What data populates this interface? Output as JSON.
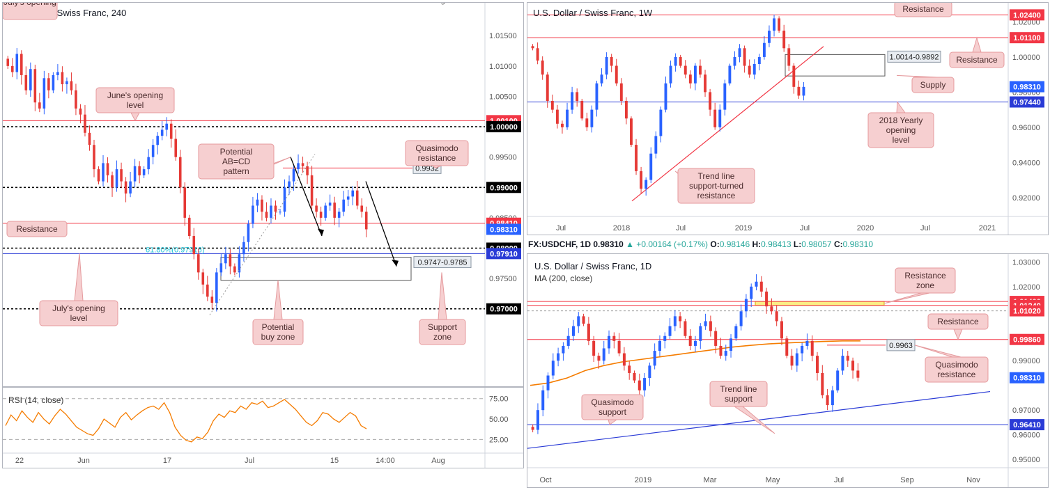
{
  "colors": {
    "bull": "#2962ff",
    "bear": "#e53935",
    "red_line": "#f23645",
    "blue_line": "#2a3bd6",
    "note_bg": "#f6cfd0",
    "note_border": "#e59a9d",
    "rsi": "#f57c00",
    "ma": "#f57c00",
    "zone_fill": "#fbee86",
    "zone_border": "#d4a900",
    "fib": "#26c6da"
  },
  "chart_data": [
    {
      "id": "h4",
      "type": "candlestick",
      "title": "U.S. Dollar / Swiss Franc, 240",
      "ylim": [
        0.9585,
        1.0195
      ],
      "y_ticks": [
        "1.01500",
        "1.01000",
        "1.00500",
        "0.99500",
        "0.98500",
        "0.97500"
      ],
      "x_ticks": [
        "22",
        "Jun",
        "17",
        "Jul",
        "15",
        "14:00",
        "Aug"
      ],
      "levels": [
        {
          "value": 1.001,
          "label": "1.00100",
          "style": "red"
        },
        {
          "value": 1.0,
          "label": "1.00000",
          "style": "black-dotted"
        },
        {
          "value": 0.99,
          "label": "0.99000",
          "style": "black-dotted"
        },
        {
          "value": 0.9841,
          "label": "0.98410",
          "style": "red"
        },
        {
          "value": 0.9831,
          "label": "0.98310",
          "style": "price"
        },
        {
          "value": 0.98,
          "label": "0.98000",
          "style": "black-dotted"
        },
        {
          "value": 0.9791,
          "label": "0.97910",
          "style": "blue"
        },
        {
          "value": 0.97,
          "label": "0.97000",
          "style": "black-dotted"
        }
      ],
      "quasimodo_level": {
        "value": 0.9932,
        "label": "0.9932"
      },
      "fib_label": "61.80%(0.97916)",
      "buy_zone": {
        "top": 0.9785,
        "bottom": 0.9747,
        "label": "0.9747-0.9785"
      },
      "annotations": {
        "julys_opening_top": "July's opening",
        "junes_opening": "June's opening level",
        "quasimodo": "Quasimodo resistance",
        "abcd": "Potential AB=CD pattern",
        "resistance": "Resistance",
        "julys_opening": "July's opening level",
        "buy_zone": "Potential buy zone",
        "support_zone": "Support zone"
      },
      "close_path": [
        1.01,
        1.009,
        1.012,
        1.0085,
        1.006,
        1.0095,
        1.004,
        1.003,
        1.008,
        1.006,
        1.0085,
        1.009,
        1.007,
        1.0075,
        1.006,
        1.003,
        1.002,
        0.999,
        0.997,
        0.993,
        0.991,
        0.994,
        0.992,
        0.99,
        0.993,
        0.991,
        0.989,
        0.991,
        0.9935,
        0.992,
        0.993,
        0.995,
        0.997,
        0.9985,
        0.9995,
        1.0005,
        0.998,
        0.995,
        0.99,
        0.985,
        0.982,
        0.979,
        0.976,
        0.974,
        0.972,
        0.971,
        0.976,
        0.9775,
        0.979,
        0.977,
        0.976,
        0.979,
        0.981,
        0.984,
        0.987,
        0.988,
        0.986,
        0.985,
        0.987,
        0.986,
        0.986,
        0.99,
        0.991,
        0.993,
        0.994,
        0.9935,
        0.992,
        0.987,
        0.986,
        0.985,
        0.987,
        0.9875,
        0.985,
        0.986,
        0.988,
        0.9885,
        0.9895,
        0.987,
        0.986,
        0.9831
      ]
    },
    {
      "id": "rsi",
      "type": "line",
      "title": "RSI (14, close)",
      "ylim": [
        10,
        85
      ],
      "y_ticks": [
        "75.00",
        "50.00",
        "25.00"
      ],
      "values": [
        42,
        55,
        48,
        60,
        52,
        46,
        58,
        50,
        44,
        54,
        62,
        56,
        48,
        40,
        36,
        32,
        30,
        38,
        50,
        45,
        40,
        52,
        58,
        49,
        55,
        60,
        64,
        66,
        62,
        70,
        58,
        40,
        30,
        24,
        22,
        28,
        26,
        34,
        48,
        56,
        52,
        60,
        58,
        66,
        62,
        70,
        68,
        72,
        64,
        66,
        70,
        74,
        68,
        62,
        54,
        46,
        42,
        48,
        58,
        56,
        50,
        46,
        52,
        58,
        54,
        42,
        38
      ]
    },
    {
      "id": "w1",
      "type": "candlestick",
      "title": "U.S. Dollar / Swiss Franc, 1W",
      "ylim": [
        0.91,
        1.0285
      ],
      "y_ticks": [
        "1.02000",
        "1.00000",
        "0.98000",
        "0.96000",
        "0.94000",
        "0.92000"
      ],
      "x_ticks": [
        "Jul",
        "2018",
        "Jul",
        "2019",
        "Jul",
        "2020",
        "Jul",
        "2021"
      ],
      "levels": [
        {
          "value": 1.024,
          "label": "1.02400",
          "style": "red"
        },
        {
          "value": 1.011,
          "label": "1.01100",
          "style": "red"
        },
        {
          "value": 0.9831,
          "label": "0.98310",
          "style": "price"
        },
        {
          "value": 0.9744,
          "label": "0.97440",
          "style": "blue"
        }
      ],
      "supply_zone": {
        "top": 1.0014,
        "bottom": 0.9892,
        "label": "1.0014-0.9892"
      },
      "annotations": {
        "resistance_top": "Resistance",
        "resistance_right": "Resistance",
        "supply": "Supply",
        "yearly_opening": "2018 Yearly opening level",
        "trend_line": "Trend line support-turned resistance"
      },
      "close_path": [
        1.005,
        0.998,
        0.99,
        0.975,
        0.97,
        0.962,
        0.96,
        0.97,
        0.98,
        0.975,
        0.965,
        0.96,
        0.97,
        0.985,
        0.99,
        1.0,
        0.995,
        0.985,
        0.975,
        0.965,
        0.95,
        0.935,
        0.925,
        0.93,
        0.945,
        0.955,
        0.97,
        0.985,
        0.995,
        1.0,
        0.995,
        0.99,
        0.985,
        0.995,
        0.99,
        0.98,
        0.97,
        0.96,
        0.97,
        0.985,
        0.995,
        1.0,
        1.005,
        0.995,
        0.99,
        0.996,
        1.0,
        1.008,
        1.015,
        1.022,
        1.015,
        1.005,
        0.995,
        0.983,
        0.978,
        0.983
      ]
    },
    {
      "id": "d1",
      "type": "candlestick",
      "title": "U.S. Dollar / Swiss Franc, 1D",
      "subtitle": "MA (200, close)",
      "ylim": [
        0.9475,
        1.0315
      ],
      "y_ticks": [
        "1.03000",
        "1.02000",
        "0.99000",
        "0.97000",
        "0.96000",
        "0.95000"
      ],
      "x_ticks": [
        "Oct",
        "2019",
        "Mar",
        "May",
        "Jul",
        "Sep",
        "Nov"
      ],
      "levels": [
        {
          "value": 1.014,
          "label": "1.01400",
          "style": "red"
        },
        {
          "value": 1.0124,
          "label": "1.01240",
          "style": "red"
        },
        {
          "value": 1.0102,
          "label": "1.01020",
          "style": "gray"
        },
        {
          "value": 0.9986,
          "label": "0.99860",
          "style": "red"
        },
        {
          "value": 0.9831,
          "label": "0.98310",
          "style": "price"
        },
        {
          "value": 0.9641,
          "label": "0.96410",
          "style": "blue"
        }
      ],
      "quasimodo_level": {
        "value": 0.9963,
        "label": "0.9963"
      },
      "annotations": {
        "resistance_zone": "Resistance zone",
        "resistance": "Resistance",
        "quasimodo_resistance": "Quasimodo resistance",
        "trend_line": "Trend line support",
        "quasimodo_support": "Quasimodo support"
      },
      "close_path": [
        0.962,
        0.97,
        0.978,
        0.984,
        0.99,
        0.993,
        0.996,
        1.0,
        1.004,
        1.008,
        1.005,
        0.998,
        0.992,
        0.99,
        0.995,
        1.0,
        0.998,
        0.993,
        0.988,
        0.985,
        0.982,
        0.978,
        0.983,
        0.988,
        0.994,
        0.998,
        1.0,
        1.004,
        1.008,
        1.006,
        1.0,
        0.996,
        0.998,
        1.004,
        1.006,
        1.002,
        0.996,
        0.992,
        0.994,
        0.999,
        1.004,
        1.01,
        1.015,
        1.02,
        1.022,
        1.018,
        1.012,
        1.01,
        1.006,
        0.999,
        0.992,
        0.988,
        0.993,
        0.996,
        0.998,
        0.992,
        0.985,
        0.976,
        0.972,
        0.978,
        0.986,
        0.992,
        0.99,
        0.986,
        0.9831
      ],
      "ma_path": [
        0.98,
        0.981,
        0.983,
        0.986,
        0.988,
        0.9895,
        0.9905,
        0.9915,
        0.9925,
        0.9935,
        0.9945,
        0.9955,
        0.9962,
        0.9968,
        0.9972,
        0.9975,
        0.9978,
        0.998,
        0.998
      ]
    }
  ],
  "ticker": {
    "symbol": "FX:USDCHF, 1D",
    "price": "0.98310",
    "change": "▲ +0.00164 (+0.17%)",
    "o_label": "O:",
    "o_value": "0.98146",
    "h_label": "H:",
    "h_value": "0.98413",
    "l_label": "L:",
    "l_value": "0.98057",
    "c_label": "C:",
    "c_value": "0.98310"
  }
}
